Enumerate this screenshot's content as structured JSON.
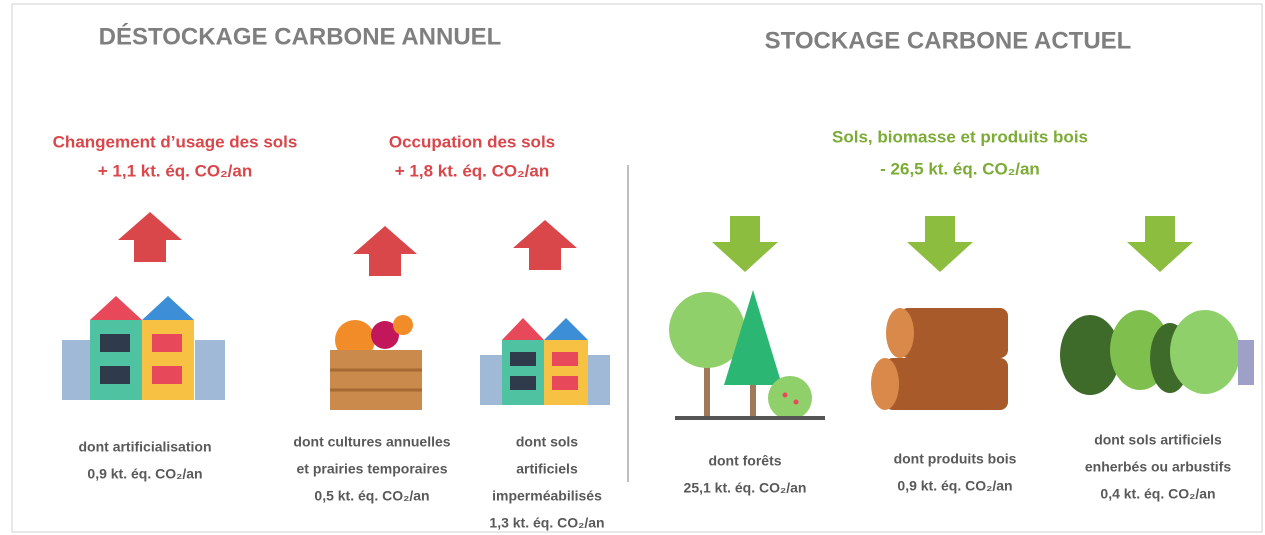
{
  "sections": [
    {
      "title": "DÉSTOCKAGE CARBONE ANNUEL",
      "groups": [
        {
          "label": "Changement d’usage des sols",
          "value": "+ 1,1 kt. éq. CO₂/an"
        },
        {
          "label": "Occupation des sols",
          "value": "+ 1,8 kt. éq. CO₂/an"
        }
      ],
      "items": [
        {
          "caption": [
            "dont artificialisation"
          ],
          "value": "0,9 kt. éq. CO₂/an"
        },
        {
          "caption": [
            "dont cultures annuelles",
            "et prairies temporaires"
          ],
          "value": "0,5 kt. éq. CO₂/an"
        },
        {
          "caption": [
            "dont sols",
            "artificiels",
            "imperméabilisés"
          ],
          "value": "1,3 kt. éq. CO₂/an"
        }
      ]
    },
    {
      "title": "STOCKAGE CARBONE ACTUEL",
      "groups": [
        {
          "label": "Sols, biomasse et produits bois",
          "value": "- 26,5 kt. éq. CO₂/an"
        }
      ],
      "items": [
        {
          "caption": [
            "dont forêts"
          ],
          "value": "25,1 kt. éq. CO₂/an"
        },
        {
          "caption": [
            "dont produits bois"
          ],
          "value": "0,9 kt. éq. CO₂/an"
        },
        {
          "caption": [
            "dont sols artificiels",
            "enherbés ou arbustifs"
          ],
          "value": "0,4 kt. éq. CO₂/an"
        }
      ]
    }
  ]
}
